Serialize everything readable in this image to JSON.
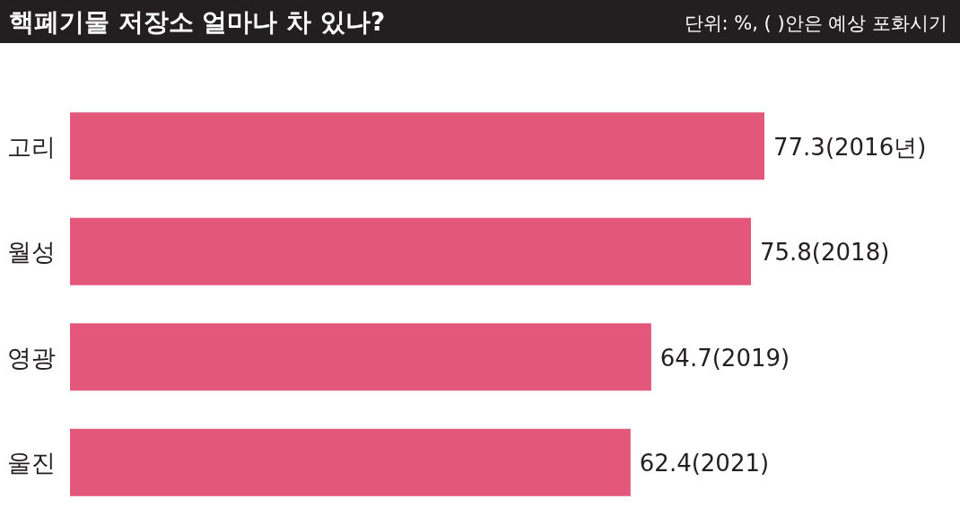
{
  "chart_data": {
    "type": "bar",
    "orientation": "horizontal",
    "title": "핵폐기물 저장소 얼마나 차 있나?",
    "subtitle": "단위: %, ( )안은 예상 포화시기",
    "categories": [
      "고리",
      "월성",
      "영광",
      "울진"
    ],
    "values": [
      77.3,
      75.8,
      64.7,
      62.4
    ],
    "value_labels": [
      "77.3(2016년)",
      "75.8(2018)",
      "64.7(2019)",
      "62.4(2021)"
    ],
    "color": "#e2577a"
  }
}
